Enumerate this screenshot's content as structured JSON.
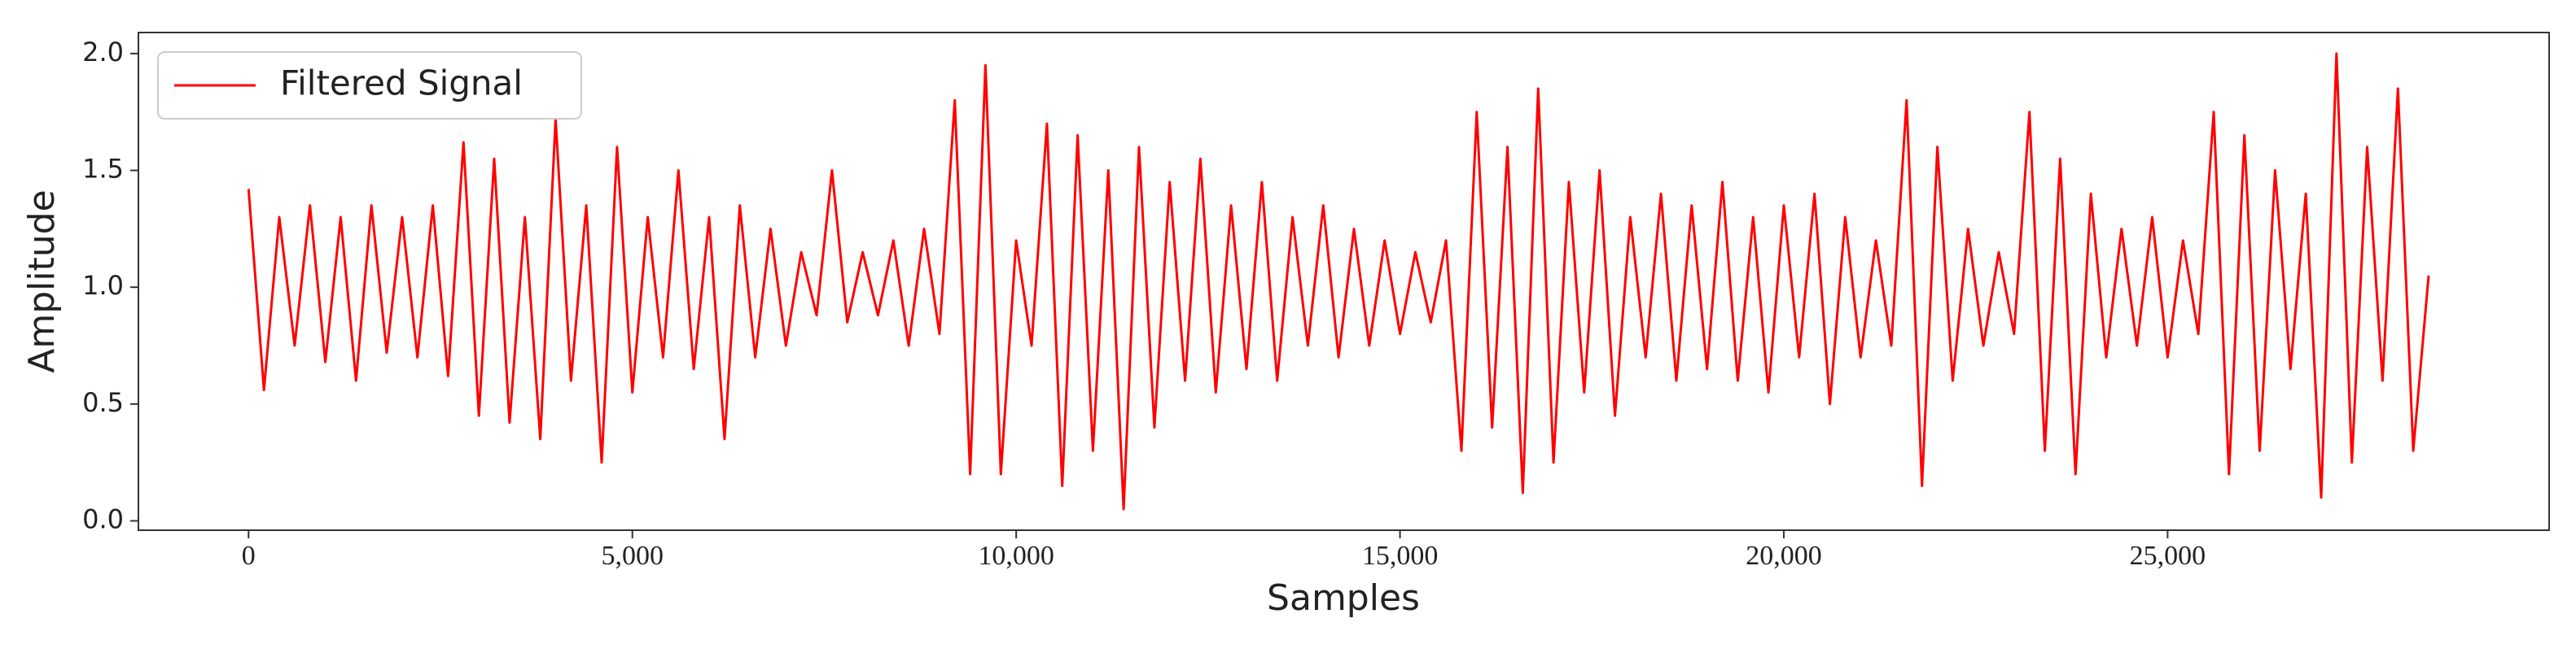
{
  "chart_data": {
    "type": "line",
    "xlabel": "Samples",
    "ylabel": "Amplitude",
    "xlim": [
      -1435,
      29970
    ],
    "ylim": [
      -0.04,
      2.09
    ],
    "xticks": [
      {
        "value": 0,
        "label": "0"
      },
      {
        "value": 5000,
        "label": "5,000"
      },
      {
        "value": 10000,
        "label": "10,000"
      },
      {
        "value": 15000,
        "label": "15,000"
      },
      {
        "value": 20000,
        "label": "20,000"
      },
      {
        "value": 25000,
        "label": "25,000"
      }
    ],
    "yticks": [
      {
        "value": 0,
        "label": "0.0"
      },
      0.5,
      {
        "value": 1,
        "label": "1.0"
      },
      1.5,
      {
        "value": 2,
        "label": "2.0"
      }
    ],
    "legend": "upper left",
    "x": [
      0,
      200,
      400,
      600,
      800,
      1000,
      1200,
      1400,
      1600,
      1800,
      2000,
      2200,
      2400,
      2600,
      2800,
      3000,
      3200,
      3400,
      3600,
      3800,
      4000,
      4200,
      4400,
      4600,
      4800,
      5000,
      5200,
      5400,
      5600,
      5800,
      6000,
      6200,
      6400,
      6600,
      6800,
      7000,
      7200,
      7400,
      7600,
      7800,
      8000,
      8200,
      8400,
      8600,
      8800,
      9000,
      9200,
      9400,
      9600,
      9800,
      10000,
      10200,
      10400,
      10600,
      10800,
      11000,
      11200,
      11400,
      11600,
      11800,
      12000,
      12200,
      12400,
      12600,
      12800,
      13000,
      13200,
      13400,
      13600,
      13800,
      14000,
      14200,
      14400,
      14600,
      14800,
      15000,
      15200,
      15400,
      15600,
      15800,
      16000,
      16200,
      16400,
      16600,
      16800,
      17000,
      17200,
      17400,
      17600,
      17800,
      18000,
      18200,
      18400,
      18600,
      18800,
      19000,
      19200,
      19400,
      19600,
      19800,
      20000,
      20200,
      20400,
      20600,
      20800,
      21000,
      21200,
      21400,
      21600,
      21800,
      22000,
      22200,
      22400,
      22600,
      22800,
      23000,
      23200,
      23400,
      23600,
      23800,
      24000,
      24200,
      24400,
      24600,
      24800,
      25000,
      25200,
      25400,
      25600,
      25800,
      26000,
      26200,
      26400,
      26600,
      26800,
      27000,
      27200,
      27400,
      27600,
      27800,
      28000,
      28200,
      28400
    ],
    "series": [
      {
        "name": "Filtered Signal",
        "color": "#ff0000",
        "values": [
          1.42,
          0.56,
          1.3,
          0.75,
          1.35,
          0.68,
          1.3,
          0.6,
          1.35,
          0.72,
          1.3,
          0.7,
          1.35,
          0.62,
          1.62,
          0.45,
          1.55,
          0.42,
          1.3,
          0.35,
          1.72,
          0.6,
          1.35,
          0.25,
          1.6,
          0.55,
          1.3,
          0.7,
          1.5,
          0.65,
          1.3,
          0.35,
          1.35,
          0.7,
          1.25,
          0.75,
          1.15,
          0.88,
          1.5,
          0.85,
          1.15,
          0.88,
          1.2,
          0.75,
          1.25,
          0.8,
          1.8,
          0.2,
          1.95,
          0.2,
          1.2,
          0.75,
          1.7,
          0.15,
          1.65,
          0.3,
          1.5,
          0.05,
          1.6,
          0.4,
          1.45,
          0.6,
          1.55,
          0.55,
          1.35,
          0.65,
          1.45,
          0.6,
          1.3,
          0.75,
          1.35,
          0.7,
          1.25,
          0.75,
          1.2,
          0.8,
          1.15,
          0.85,
          1.2,
          0.3,
          1.75,
          0.4,
          1.6,
          0.12,
          1.85,
          0.25,
          1.45,
          0.55,
          1.5,
          0.45,
          1.3,
          0.7,
          1.4,
          0.6,
          1.35,
          0.65,
          1.45,
          0.6,
          1.3,
          0.55,
          1.35,
          0.7,
          1.4,
          0.5,
          1.3,
          0.7,
          1.2,
          0.75,
          1.8,
          0.15,
          1.6,
          0.6,
          1.25,
          0.75,
          1.15,
          0.8,
          1.75,
          0.3,
          1.55,
          0.2,
          1.4,
          0.7,
          1.25,
          0.75,
          1.3,
          0.7,
          1.2,
          0.8,
          1.75,
          0.2,
          1.65,
          0.3,
          1.5,
          0.65,
          1.4,
          0.1,
          2.0,
          0.25,
          1.6,
          0.6,
          1.85,
          0.3,
          1.05
        ]
      }
    ]
  }
}
